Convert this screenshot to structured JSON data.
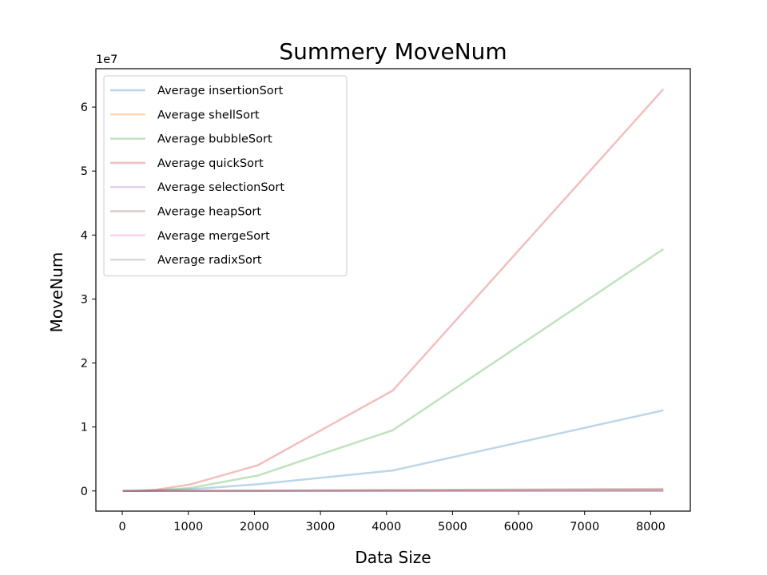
{
  "chart_data": {
    "type": "line",
    "title": "Summery MoveNum",
    "xlabel": "Data Size",
    "ylabel": "MoveNum",
    "y_offset_label": "1e7",
    "y_scale": 10000000,
    "xlim": [
      -400,
      8600
    ],
    "ylim": [
      -3150000,
      66000000
    ],
    "xticks": [
      0,
      1000,
      2000,
      3000,
      4000,
      5000,
      6000,
      7000,
      8000
    ],
    "yticks": [
      0,
      10000000,
      20000000,
      30000000,
      40000000,
      50000000,
      60000000
    ],
    "ytick_labels": [
      "0",
      "1",
      "2",
      "3",
      "4",
      "5",
      "6"
    ],
    "grid": false,
    "legend_position": "upper-left",
    "x": [
      8,
      16,
      32,
      64,
      128,
      256,
      512,
      1024,
      2048,
      4096,
      8192
    ],
    "series": [
      {
        "name": "Average insertionSort",
        "color": "#1f77b4",
        "values": [
          16,
          64,
          256,
          1024,
          4096,
          16384,
          65536,
          262144,
          1048576,
          3200000,
          12600000
        ]
      },
      {
        "name": "Average shellSort",
        "color": "#ff7f0e",
        "values": [
          20,
          60,
          170,
          450,
          1150,
          2800,
          6600,
          15000,
          34000,
          76000,
          170000
        ]
      },
      {
        "name": "Average bubbleSort",
        "color": "#2ca02c",
        "values": [
          28,
          112,
          448,
          1792,
          7168,
          28672,
          114688,
          458752,
          2400000,
          9500000,
          37800000
        ]
      },
      {
        "name": "Average quickSort",
        "color": "#d62728",
        "values": [
          48,
          192,
          768,
          3072,
          12288,
          49152,
          196608,
          1000000,
          4000000,
          15700000,
          62800000
        ]
      },
      {
        "name": "Average selectionSort",
        "color": "#9467bd",
        "values": [
          8,
          16,
          32,
          64,
          128,
          256,
          512,
          1024,
          2048,
          4096,
          8192
        ]
      },
      {
        "name": "Average heapSort",
        "color": "#8c564b",
        "values": [
          40,
          100,
          240,
          560,
          1300,
          3000,
          6700,
          15000,
          33000,
          150000,
          330000
        ]
      },
      {
        "name": "Average mergeSort",
        "color": "#e377c2",
        "values": [
          24,
          64,
          160,
          384,
          896,
          2048,
          4608,
          10240,
          22528,
          49152,
          106496
        ]
      },
      {
        "name": "Average radixSort",
        "color": "#7f7f7f",
        "values": [
          24,
          48,
          96,
          192,
          384,
          768,
          1536,
          3072,
          8192,
          32768,
          65536
        ]
      }
    ]
  }
}
